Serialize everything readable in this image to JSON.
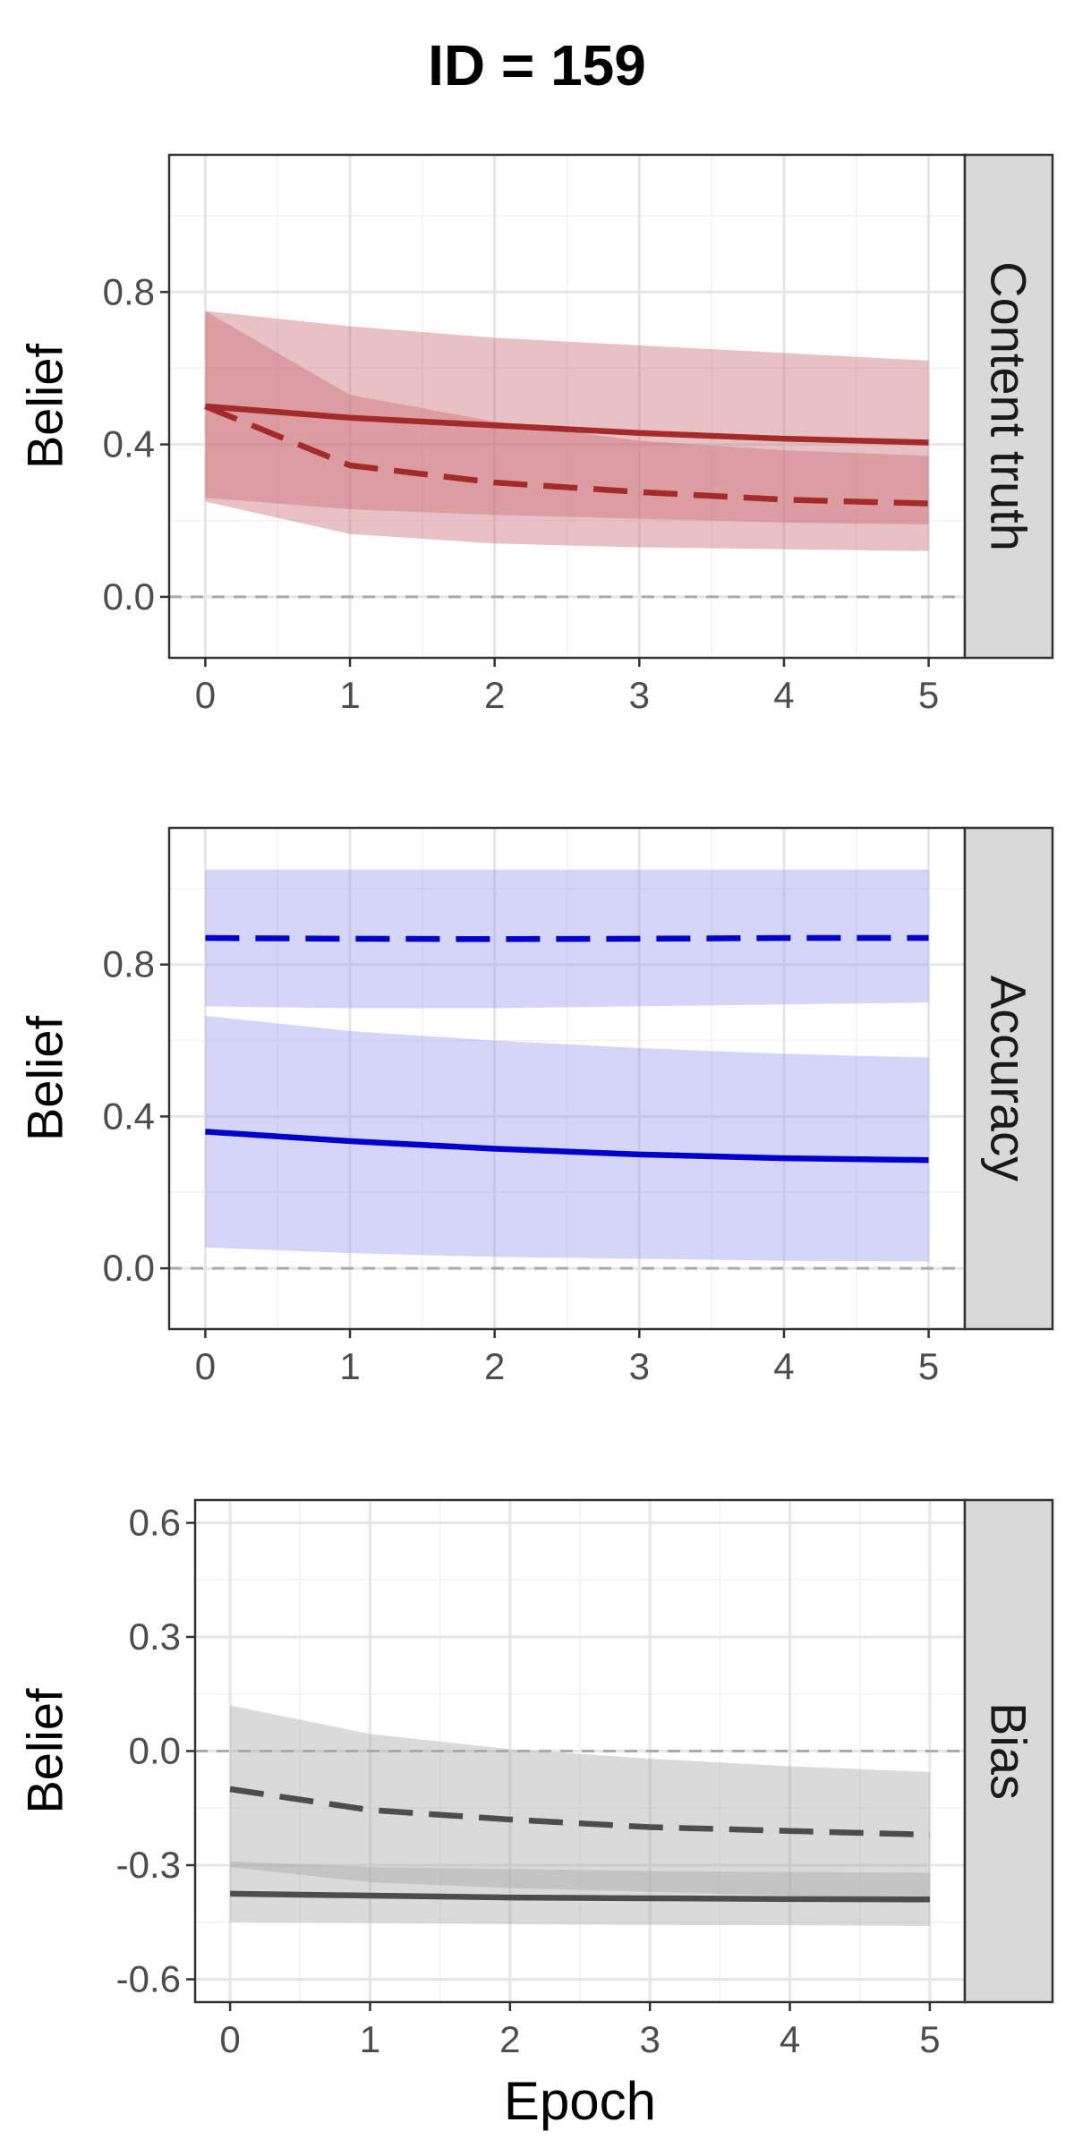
{
  "title": "ID = 159",
  "xlabel": "Epoch",
  "chart_data": [
    {
      "type": "line",
      "panel": "Content truth",
      "ylabel": "Belief",
      "color": "#a52a2a",
      "band_color": "#c86b73",
      "x": [
        0,
        1,
        2,
        3,
        4,
        5
      ],
      "xlim": [
        -0.25,
        5.25
      ],
      "ylim": [
        -0.16,
        1.16
      ],
      "yticks": [
        0.0,
        0.4,
        0.8
      ],
      "ytick_labels": [
        "0.0",
        "0.4",
        "0.8"
      ],
      "xticks": [
        0,
        1,
        2,
        3,
        4,
        5
      ],
      "xtick_labels": [
        "0",
        "1",
        "2",
        "3",
        "4",
        "5"
      ],
      "reference_line": 0,
      "series": [
        {
          "style": "solid",
          "values": [
            0.5,
            0.47,
            0.45,
            0.43,
            0.415,
            0.405
          ],
          "lower": [
            0.26,
            0.23,
            0.215,
            0.205,
            0.195,
            0.19
          ],
          "upper": [
            0.75,
            0.71,
            0.68,
            0.66,
            0.64,
            0.62
          ]
        },
        {
          "style": "dashed",
          "values": [
            0.5,
            0.345,
            0.3,
            0.275,
            0.255,
            0.245
          ],
          "lower": [
            0.25,
            0.165,
            0.14,
            0.13,
            0.125,
            0.12
          ],
          "upper": [
            0.75,
            0.53,
            0.46,
            0.41,
            0.385,
            0.37
          ]
        }
      ],
      "grid": true
    },
    {
      "type": "line",
      "panel": "Accuracy",
      "ylabel": "Belief",
      "color": "#0000cd",
      "band_color": "#9a9af0",
      "x": [
        0,
        1,
        2,
        3,
        4,
        5
      ],
      "xlim": [
        -0.25,
        5.25
      ],
      "ylim": [
        -0.16,
        1.16
      ],
      "yticks": [
        0.0,
        0.4,
        0.8
      ],
      "ytick_labels": [
        "0.0",
        "0.4",
        "0.8"
      ],
      "xticks": [
        0,
        1,
        2,
        3,
        4,
        5
      ],
      "xtick_labels": [
        "0",
        "1",
        "2",
        "3",
        "4",
        "5"
      ],
      "reference_line": 0,
      "series": [
        {
          "style": "dashed",
          "values": [
            0.87,
            0.868,
            0.867,
            0.868,
            0.87,
            0.87
          ],
          "lower": [
            0.69,
            0.685,
            0.685,
            0.69,
            0.695,
            0.7
          ],
          "upper": [
            1.05,
            1.05,
            1.05,
            1.05,
            1.05,
            1.05
          ]
        },
        {
          "style": "solid",
          "values": [
            0.36,
            0.335,
            0.315,
            0.3,
            0.29,
            0.285
          ],
          "lower": [
            0.055,
            0.04,
            0.03,
            0.025,
            0.02,
            0.018
          ],
          "upper": [
            0.665,
            0.625,
            0.6,
            0.58,
            0.565,
            0.555
          ]
        }
      ],
      "grid": true
    },
    {
      "type": "line",
      "panel": "Bias",
      "ylabel": "Belief",
      "color": "#4d4d4d",
      "band_color": "#a6a6a6",
      "x": [
        0,
        1,
        2,
        3,
        4,
        5
      ],
      "xlim": [
        -0.25,
        5.25
      ],
      "ylim": [
        -0.66,
        0.66
      ],
      "yticks": [
        -0.6,
        -0.3,
        0.0,
        0.3,
        0.6
      ],
      "ytick_labels": [
        "-0.6",
        "-0.3",
        "0.0",
        "0.3",
        "0.6"
      ],
      "xticks": [
        0,
        1,
        2,
        3,
        4,
        5
      ],
      "xtick_labels": [
        "0",
        "1",
        "2",
        "3",
        "4",
        "5"
      ],
      "reference_line": 0,
      "series": [
        {
          "style": "dashed",
          "values": [
            -0.1,
            -0.155,
            -0.18,
            -0.2,
            -0.21,
            -0.22
          ],
          "lower": [
            -0.305,
            -0.345,
            -0.36,
            -0.37,
            -0.38,
            -0.39
          ],
          "upper": [
            0.12,
            0.045,
            0.005,
            -0.02,
            -0.04,
            -0.055
          ]
        },
        {
          "style": "solid",
          "values": [
            -0.375,
            -0.38,
            -0.385,
            -0.387,
            -0.389,
            -0.39
          ],
          "lower": [
            -0.45,
            -0.452,
            -0.455,
            -0.457,
            -0.458,
            -0.46
          ],
          "upper": [
            -0.29,
            -0.305,
            -0.31,
            -0.315,
            -0.318,
            -0.32
          ]
        }
      ],
      "grid": true
    }
  ]
}
